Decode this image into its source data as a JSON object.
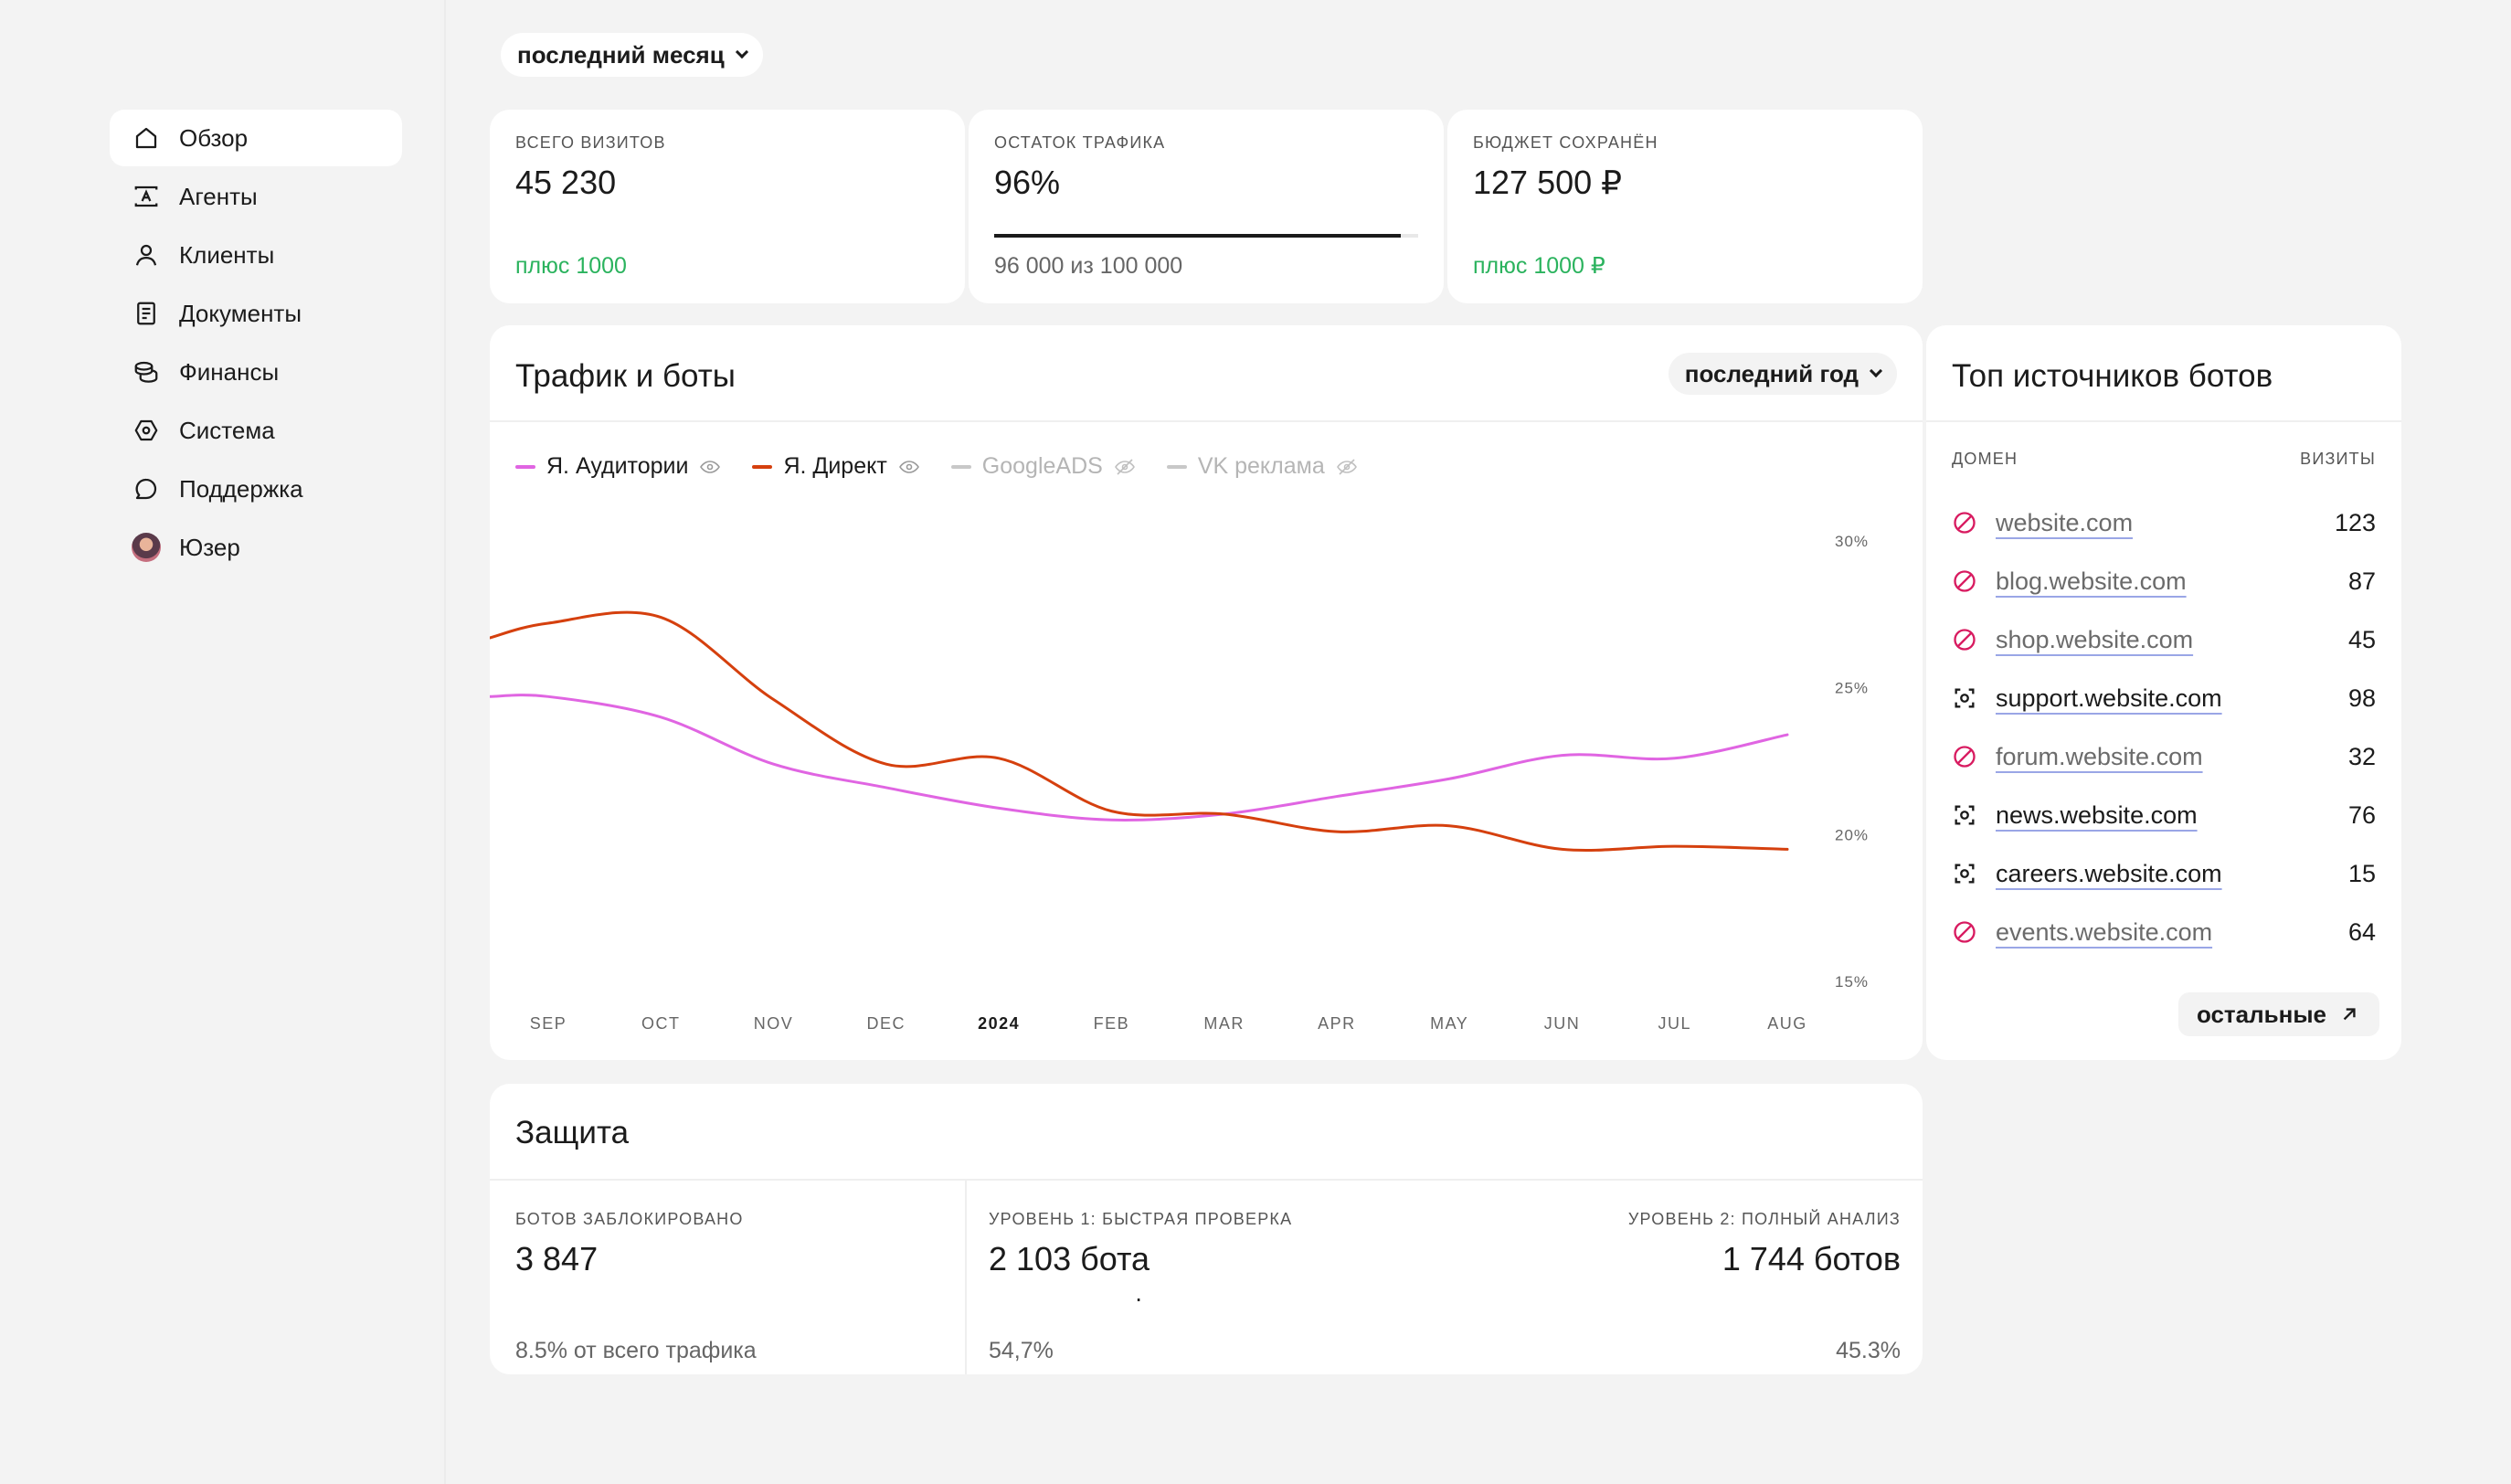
{
  "sidebar": {
    "items": [
      {
        "label": "Обзор",
        "icon": "home-icon",
        "active": true
      },
      {
        "label": "Агенты",
        "icon": "agent-icon"
      },
      {
        "label": "Клиенты",
        "icon": "user-icon"
      },
      {
        "label": "Документы",
        "icon": "document-icon"
      },
      {
        "label": "Финансы",
        "icon": "coins-icon"
      },
      {
        "label": "Система",
        "icon": "system-icon"
      },
      {
        "label": "Поддержка",
        "icon": "chat-icon"
      },
      {
        "label": "Юзер",
        "icon": "avatar"
      }
    ]
  },
  "period": {
    "label": "последний месяц"
  },
  "kpis": {
    "visits": {
      "label": "ВСЕГО ВИЗИТОВ",
      "value": "45 230",
      "foot": "плюс 1000"
    },
    "traffic": {
      "label": "ОСТАТОК ТРАФИКА",
      "value": "96%",
      "foot": "96 000 из 100 000",
      "fill": 0.96
    },
    "budget": {
      "label": "БЮДЖЕТ СОХРАНЁН",
      "value": "127 500 ₽",
      "foot": "плюс 1000 ₽"
    }
  },
  "traffic_card": {
    "title": "Трафик и боты",
    "period": "последний год",
    "legend": [
      {
        "name": "Я. Аудитории",
        "color": "#e065e2",
        "visible": true
      },
      {
        "name": "Я. Директ",
        "color": "#d5400e",
        "visible": true
      },
      {
        "name": "GoogleADS",
        "color": "#c8c8c8",
        "visible": false
      },
      {
        "name": "VK реклама",
        "color": "#c8c8c8",
        "visible": false
      }
    ]
  },
  "chart_data": {
    "type": "line",
    "x": [
      "SEP",
      "OCT",
      "NOV",
      "DEC",
      "2024",
      "FEB",
      "MAR",
      "APR",
      "MAY",
      "JUN",
      "JUL",
      "AUG"
    ],
    "ylim": [
      15,
      30
    ],
    "yticks": [
      "15%",
      "20%",
      "25%",
      "30%"
    ],
    "grid": false,
    "series": [
      {
        "name": "Я. Аудитории",
        "color": "#e065e2",
        "values": [
          24.7,
          24.0,
          22.4,
          21.6,
          20.9,
          20.5,
          20.7,
          21.3,
          21.9,
          22.7,
          22.6,
          23.4
        ]
      },
      {
        "name": "Я. Директ",
        "color": "#d5400e",
        "values": [
          27.2,
          27.4,
          24.6,
          22.4,
          22.6,
          20.8,
          20.7,
          20.1,
          20.3,
          19.5,
          19.6,
          19.5
        ]
      }
    ]
  },
  "bots_card": {
    "title": "Топ источников ботов",
    "col_domain": "ДОМЕН",
    "col_visits": "ВИЗИТЫ",
    "rows": [
      {
        "domain": "website.com",
        "visits": "123",
        "status": "blocked"
      },
      {
        "domain": "blog.website.com",
        "visits": "87",
        "status": "blocked"
      },
      {
        "domain": "shop.website.com",
        "visits": "45",
        "status": "blocked"
      },
      {
        "domain": "support.website.com",
        "visits": "98",
        "status": "scan"
      },
      {
        "domain": "forum.website.com",
        "visits": "32",
        "status": "blocked"
      },
      {
        "domain": "news.website.com",
        "visits": "76",
        "status": "scan"
      },
      {
        "domain": "careers.website.com",
        "visits": "15",
        "status": "scan"
      },
      {
        "domain": "events.website.com",
        "visits": "64",
        "status": "blocked"
      }
    ],
    "more": "остальные"
  },
  "protection": {
    "title": "Защита",
    "blocked_label": "БОТОВ ЗАБЛОКИРОВАНО",
    "blocked_value": "3 847",
    "blocked_foot": "8.5% от всего трафика",
    "lvl1_label": "УРОВЕНЬ 1: БЫСТРАЯ ПРОВЕРКА",
    "lvl1_value": "2 103 бота",
    "lvl1_pct": "54,7%",
    "lvl2_label": "УРОВЕНЬ 2: ПОЛНЫЙ АНАЛИЗ",
    "lvl2_value": "1 744 ботов",
    "lvl2_pct": "45.3%",
    "split": 0.547
  }
}
